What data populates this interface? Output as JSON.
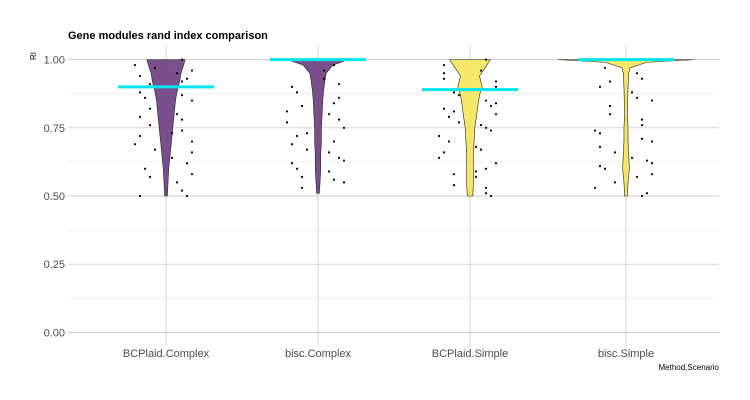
{
  "chart_data": {
    "type": "violin",
    "title": "Gene modules rand index comparison",
    "xlabel": "Method.Scenario",
    "ylabel": "RI",
    "categories": [
      "BCPlaid.Complex",
      "bisc.Complex",
      "BCPlaid.Simple",
      "bisc.Simple"
    ],
    "ylim": [
      -0.05,
      1.05
    ],
    "yticks": [
      0.0,
      0.25,
      0.5,
      0.75,
      1.0
    ],
    "ytick_labels": [
      "0.00",
      "0.25",
      "0.50",
      "0.75",
      "1.00"
    ],
    "grid": true,
    "legend": "none",
    "colors": {
      "BCPlaid.Complex": "#6a3d7f",
      "bisc.Complex": "#6a3d7f",
      "BCPlaid.Simple": "#f4e45a",
      "bisc.Simple": "#f4e45a",
      "mean_line": "#00e5ee",
      "points": "#000000"
    },
    "means": [
      0.9,
      1.0,
      0.89,
      1.0
    ],
    "violins": [
      {
        "y": [
          1.0,
          0.98,
          0.95,
          0.92,
          0.88,
          0.85,
          0.8,
          0.75,
          0.7,
          0.65,
          0.6,
          0.55,
          0.5
        ],
        "density": [
          0.28,
          0.26,
          0.22,
          0.2,
          0.16,
          0.14,
          0.12,
          0.1,
          0.08,
          0.06,
          0.04,
          0.03,
          0.02
        ]
      },
      {
        "y": [
          1.0,
          0.98,
          0.95,
          0.92,
          0.88,
          0.85,
          0.8,
          0.75,
          0.7,
          0.65,
          0.6,
          0.55,
          0.51
        ],
        "density": [
          0.45,
          0.22,
          0.12,
          0.1,
          0.08,
          0.07,
          0.06,
          0.05,
          0.05,
          0.04,
          0.04,
          0.03,
          0.02
        ]
      },
      {
        "y": [
          1.0,
          0.97,
          0.94,
          0.9,
          0.87,
          0.84,
          0.8,
          0.75,
          0.7,
          0.65,
          0.6,
          0.55,
          0.5
        ],
        "density": [
          0.3,
          0.22,
          0.14,
          0.18,
          0.14,
          0.12,
          0.1,
          0.07,
          0.06,
          0.05,
          0.05,
          0.05,
          0.04
        ]
      },
      {
        "y": [
          1.0,
          0.99,
          0.97,
          0.95,
          0.9,
          0.85,
          0.8,
          0.75,
          0.7,
          0.65,
          0.6,
          0.55,
          0.5
        ],
        "density": [
          1.0,
          0.3,
          0.06,
          0.04,
          0.03,
          0.025,
          0.02,
          0.03,
          0.03,
          0.04,
          0.05,
          0.03,
          0.02
        ]
      }
    ],
    "jitter_points": [
      [
        [
          0.12,
          1.0
        ],
        [
          0.13,
          0.5
        ],
        [
          0.11,
          0.95
        ],
        [
          0.06,
          0.88
        ],
        [
          0.14,
          0.85
        ],
        [
          0.08,
          0.82
        ],
        [
          0.12,
          0.78
        ],
        [
          0.06,
          0.72
        ],
        [
          0.14,
          0.7
        ],
        [
          0.09,
          0.67
        ],
        [
          0.13,
          0.62
        ],
        [
          0.07,
          0.6
        ],
        [
          0.11,
          0.55
        ],
        [
          0.05,
          0.98
        ],
        [
          0.12,
          0.92
        ],
        [
          0.1,
          0.9
        ],
        [
          0.08,
          0.76
        ],
        [
          0.12,
          0.74
        ],
        [
          0.06,
          0.5
        ],
        [
          0.14,
          0.58
        ],
        [
          0.09,
          0.97
        ],
        [
          0.13,
          0.93
        ],
        [
          0.07,
          0.86
        ],
        [
          0.11,
          0.8
        ],
        [
          0.05,
          0.69
        ],
        [
          0.1,
          0.64
        ],
        [
          0.14,
          0.96
        ],
        [
          0.08,
          0.91
        ],
        [
          0.12,
          0.87
        ],
        [
          0.06,
          0.79
        ],
        [
          0.1,
          0.73
        ],
        [
          0.14,
          0.66
        ],
        [
          0.08,
          0.57
        ],
        [
          0.12,
          0.52
        ],
        [
          0.06,
          0.94
        ]
      ],
      [
        [
          0.1,
          1.0
        ],
        [
          0.12,
          0.98
        ],
        [
          0.06,
          0.9
        ],
        [
          0.13,
          0.86
        ],
        [
          0.08,
          0.83
        ],
        [
          0.11,
          0.8
        ],
        [
          0.05,
          0.77
        ],
        [
          0.14,
          0.75
        ],
        [
          0.07,
          0.72
        ],
        [
          0.12,
          0.7
        ],
        [
          0.09,
          0.67
        ],
        [
          0.13,
          0.64
        ],
        [
          0.06,
          0.62
        ],
        [
          0.11,
          0.59
        ],
        [
          0.08,
          0.57
        ],
        [
          0.14,
          0.55
        ],
        [
          0.1,
          0.93
        ],
        [
          0.07,
          0.88
        ],
        [
          0.12,
          0.84
        ],
        [
          0.05,
          0.81
        ],
        [
          0.13,
          0.78
        ],
        [
          0.09,
          0.73
        ],
        [
          0.06,
          0.69
        ],
        [
          0.11,
          0.66
        ],
        [
          0.14,
          0.63
        ],
        [
          0.07,
          0.6
        ],
        [
          0.12,
          0.56
        ],
        [
          0.08,
          0.53
        ],
        [
          0.1,
          0.96
        ],
        [
          0.13,
          0.91
        ]
      ],
      [
        [
          0.12,
          1.0
        ],
        [
          0.13,
          0.5
        ],
        [
          0.11,
          0.96
        ],
        [
          0.06,
          0.93
        ],
        [
          0.14,
          0.9
        ],
        [
          0.08,
          0.88
        ],
        [
          0.12,
          0.85
        ],
        [
          0.06,
          0.82
        ],
        [
          0.14,
          0.8
        ],
        [
          0.09,
          0.77
        ],
        [
          0.13,
          0.74
        ],
        [
          0.07,
          0.7
        ],
        [
          0.11,
          0.67
        ],
        [
          0.05,
          0.64
        ],
        [
          0.12,
          0.6
        ],
        [
          0.1,
          0.57
        ],
        [
          0.08,
          0.54
        ],
        [
          0.12,
          0.51
        ],
        [
          0.06,
          0.98
        ],
        [
          0.14,
          0.92
        ],
        [
          0.09,
          0.87
        ],
        [
          0.13,
          0.83
        ],
        [
          0.07,
          0.79
        ],
        [
          0.11,
          0.76
        ],
        [
          0.05,
          0.72
        ],
        [
          0.1,
          0.68
        ],
        [
          0.14,
          0.62
        ],
        [
          0.08,
          0.58
        ],
        [
          0.12,
          0.53
        ],
        [
          0.06,
          0.95
        ],
        [
          0.1,
          0.89
        ],
        [
          0.14,
          0.84
        ],
        [
          0.08,
          0.81
        ],
        [
          0.12,
          0.75
        ],
        [
          0.06,
          0.66
        ],
        [
          0.1,
          0.59
        ]
      ],
      [
        [
          0.1,
          1.0
        ],
        [
          0.12,
          0.5
        ],
        [
          0.11,
          0.95
        ],
        [
          0.06,
          0.9
        ],
        [
          0.14,
          0.85
        ],
        [
          0.08,
          0.8
        ],
        [
          0.12,
          0.76
        ],
        [
          0.06,
          0.73
        ],
        [
          0.14,
          0.7
        ],
        [
          0.09,
          0.66
        ],
        [
          0.13,
          0.63
        ],
        [
          0.07,
          0.6
        ],
        [
          0.11,
          0.57
        ],
        [
          0.05,
          0.53
        ],
        [
          0.12,
          0.93
        ],
        [
          0.1,
          0.88
        ],
        [
          0.08,
          0.83
        ],
        [
          0.12,
          0.78
        ],
        [
          0.06,
          0.68
        ],
        [
          0.14,
          0.62
        ],
        [
          0.09,
          0.55
        ],
        [
          0.13,
          0.51
        ],
        [
          0.07,
          0.97
        ],
        [
          0.11,
          0.86
        ],
        [
          0.05,
          0.74
        ],
        [
          0.1,
          0.64
        ],
        [
          0.14,
          0.58
        ],
        [
          0.08,
          0.92
        ],
        [
          0.12,
          0.71
        ],
        [
          0.06,
          0.61
        ]
      ]
    ]
  }
}
